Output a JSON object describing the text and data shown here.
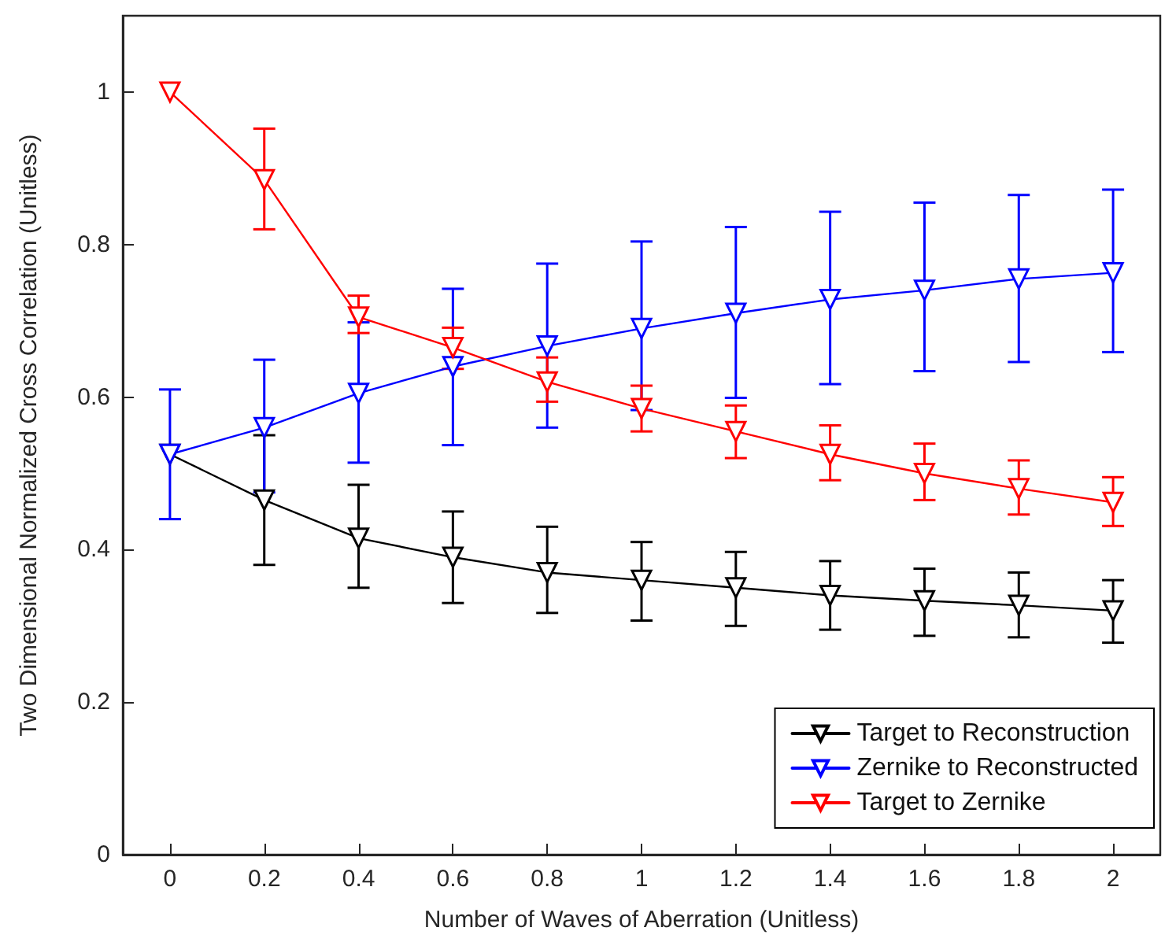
{
  "chart_data": {
    "type": "line",
    "xlabel": "Number of Waves of Aberration (Unitless)",
    "ylabel": "Two Dimensional Normalized Cross Correlation (Unitless)",
    "x": [
      0,
      0.2,
      0.4,
      0.6,
      0.8,
      1,
      1.2,
      1.4,
      1.6,
      1.8,
      2
    ],
    "xlim": [
      -0.1,
      2.1
    ],
    "xticks": [
      0,
      0.2,
      0.4,
      0.6,
      0.8,
      1,
      1.2,
      1.4,
      1.6,
      1.8,
      2
    ],
    "ylim": [
      0,
      1.1
    ],
    "yticks": [
      0,
      0.2,
      0.4,
      0.6,
      0.8,
      1
    ],
    "grid": false,
    "legend": "bottom right",
    "marker": "triangle",
    "line_style": "solid",
    "series": [
      {
        "name": "Target to Reconstruction",
        "color": "#000000",
        "values": [
          0.525,
          0.465,
          0.415,
          0.39,
          0.37,
          0.36,
          0.35,
          0.34,
          0.333,
          0.327,
          0.32
        ],
        "errors": [
          null,
          [
            0.38,
            0.55
          ],
          [
            0.35,
            0.485
          ],
          [
            0.33,
            0.45
          ],
          [
            0.317,
            0.43
          ],
          [
            0.307,
            0.41
          ],
          [
            0.3,
            0.397
          ],
          [
            0.295,
            0.385
          ],
          [
            0.287,
            0.375
          ],
          [
            0.285,
            0.37
          ],
          [
            0.278,
            0.36
          ]
        ]
      },
      {
        "name": "Zernike to Reconstructed",
        "color": "#0000ff",
        "values": [
          0.525,
          0.56,
          0.605,
          0.64,
          0.667,
          0.69,
          0.71,
          0.728,
          0.74,
          0.755,
          0.763
        ],
        "errors": [
          [
            0.44,
            0.61
          ],
          [
            0.475,
            0.649
          ],
          [
            0.514,
            0.698
          ],
          [
            0.537,
            0.742
          ],
          [
            0.56,
            0.775
          ],
          [
            0.583,
            0.804
          ],
          [
            0.599,
            0.823
          ],
          [
            0.617,
            0.843
          ],
          [
            0.634,
            0.855
          ],
          [
            0.646,
            0.865
          ],
          [
            0.659,
            0.872
          ]
        ]
      },
      {
        "name": "Target to Zernike",
        "color": "#ff0000",
        "values": [
          1.0,
          0.885,
          0.705,
          0.665,
          0.62,
          0.585,
          0.555,
          0.525,
          0.5,
          0.48,
          0.462
        ],
        "errors": [
          null,
          [
            0.82,
            0.952
          ],
          [
            0.684,
            0.733
          ],
          [
            0.637,
            0.691
          ],
          [
            0.594,
            0.652
          ],
          [
            0.555,
            0.615
          ],
          [
            0.52,
            0.589
          ],
          [
            0.491,
            0.563
          ],
          [
            0.465,
            0.539
          ],
          [
            0.446,
            0.517
          ],
          [
            0.431,
            0.495
          ]
        ]
      }
    ]
  }
}
